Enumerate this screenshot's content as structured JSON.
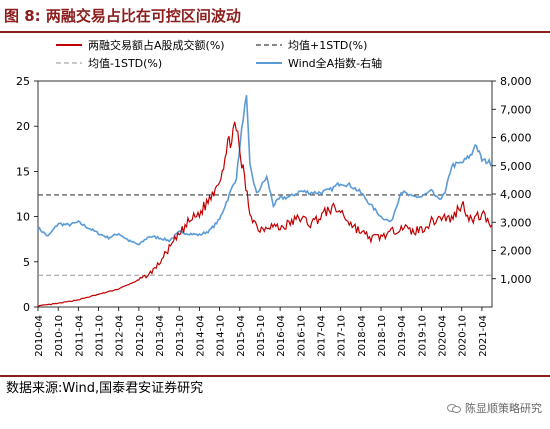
{
  "figure": {
    "title": "图 8:  两融交易占比在可控区间波动",
    "source": "数据来源:Wind,国泰君安证券研究",
    "watermark": "陈显顺策略研究",
    "watermark_icon": "wechat-icon"
  },
  "colors": {
    "red_series": "#c00000",
    "blue_series": "#5b9bd5",
    "upper_band": "#404040",
    "lower_band": "#a6a6a6",
    "title_accent": "#8c1d1d"
  },
  "chart_data": {
    "type": "line",
    "x_ticks": [
      "2010-04",
      "2010-10",
      "2011-04",
      "2011-10",
      "2012-04",
      "2012-10",
      "2013-04",
      "2013-10",
      "2014-04",
      "2014-10",
      "2015-04",
      "2015-10",
      "2016-04",
      "2016-10",
      "2017-04",
      "2017-10",
      "2018-04",
      "2018-10",
      "2019-04",
      "2019-10",
      "2020-04",
      "2020-10",
      "2021-04"
    ],
    "x_range": [
      "2010-04",
      "2021-07"
    ],
    "y_left": {
      "range": [
        0,
        25
      ],
      "ticks": [
        "0",
        "5",
        "10",
        "15",
        "20",
        "25"
      ]
    },
    "y_right": {
      "range": [
        0,
        8000
      ],
      "ticks": [
        "1,000",
        "2,000",
        "3,000",
        "4,000",
        "5,000",
        "6,000",
        "7,000",
        "8,000"
      ]
    },
    "legend": {
      "placement": "top",
      "entries": [
        {
          "label": "两融交易额占A股成交额(%)",
          "style": "solid",
          "color": "#c00000"
        },
        {
          "label": "均值+1STD(%)",
          "style": "dashed",
          "color": "#404040"
        },
        {
          "label": "均值-1STD(%)",
          "style": "dashed",
          "color": "#a6a6a6"
        },
        {
          "label": "Wind全A指数-右轴",
          "style": "solid",
          "color": "#5b9bd5"
        }
      ]
    },
    "grid": false,
    "series": [
      {
        "name": "两融交易额占A股成交额(%)",
        "axis": "left",
        "points": [
          [
            "2010-04",
            0.1
          ],
          [
            "2010-10",
            0.4
          ],
          [
            "2011-04",
            0.8
          ],
          [
            "2011-10",
            1.4
          ],
          [
            "2012-04",
            2.0
          ],
          [
            "2012-10",
            3.0
          ],
          [
            "2013-01",
            3.6
          ],
          [
            "2013-04",
            4.8
          ],
          [
            "2013-07",
            6.5
          ],
          [
            "2013-10",
            8.0
          ],
          [
            "2014-01",
            9.5
          ],
          [
            "2014-04",
            10.3
          ],
          [
            "2014-07",
            12.0
          ],
          [
            "2014-10",
            14.3
          ],
          [
            "2014-12",
            17.0
          ],
          [
            "2015-02",
            19.8
          ],
          [
            "2015-03",
            19.2
          ],
          [
            "2015-05",
            15.0
          ],
          [
            "2015-07",
            10.5
          ],
          [
            "2015-09",
            9.0
          ],
          [
            "2015-10",
            8.6
          ],
          [
            "2016-01",
            9.1
          ],
          [
            "2016-04",
            8.7
          ],
          [
            "2016-07",
            9.3
          ],
          [
            "2016-10",
            9.9
          ],
          [
            "2017-01",
            9.2
          ],
          [
            "2017-04",
            10.0
          ],
          [
            "2017-07",
            10.9
          ],
          [
            "2017-10",
            10.6
          ],
          [
            "2018-01",
            9.2
          ],
          [
            "2018-04",
            8.3
          ],
          [
            "2018-07",
            7.6
          ],
          [
            "2018-10",
            7.8
          ],
          [
            "2019-01",
            8.2
          ],
          [
            "2019-04",
            9.0
          ],
          [
            "2019-07",
            8.3
          ],
          [
            "2019-10",
            8.6
          ],
          [
            "2020-01",
            9.4
          ],
          [
            "2020-04",
            10.0
          ],
          [
            "2020-07",
            9.7
          ],
          [
            "2020-10",
            11.5
          ],
          [
            "2021-01",
            9.5
          ],
          [
            "2021-04",
            10.3
          ],
          [
            "2021-07",
            9.1
          ]
        ]
      },
      {
        "name": "Wind全A指数-右轴",
        "axis": "right",
        "points": [
          [
            "2010-04",
            2800
          ],
          [
            "2010-07",
            2500
          ],
          [
            "2010-10",
            2950
          ],
          [
            "2011-01",
            2900
          ],
          [
            "2011-04",
            3000
          ],
          [
            "2011-07",
            2800
          ],
          [
            "2011-10",
            2600
          ],
          [
            "2012-01",
            2450
          ],
          [
            "2012-04",
            2600
          ],
          [
            "2012-07",
            2350
          ],
          [
            "2012-10",
            2200
          ],
          [
            "2013-01",
            2500
          ],
          [
            "2013-04",
            2450
          ],
          [
            "2013-07",
            2350
          ],
          [
            "2013-10",
            2650
          ],
          [
            "2014-01",
            2600
          ],
          [
            "2014-04",
            2550
          ],
          [
            "2014-07",
            2700
          ],
          [
            "2014-10",
            3100
          ],
          [
            "2014-12",
            3700
          ],
          [
            "2015-03",
            4600
          ],
          [
            "2015-05",
            6700
          ],
          [
            "2015-06",
            7400
          ],
          [
            "2015-07",
            5000
          ],
          [
            "2015-09",
            4000
          ],
          [
            "2015-12",
            4600
          ],
          [
            "2016-02",
            3600
          ],
          [
            "2016-04",
            3850
          ],
          [
            "2016-07",
            3900
          ],
          [
            "2016-10",
            4100
          ],
          [
            "2017-01",
            4050
          ],
          [
            "2017-04",
            4050
          ],
          [
            "2017-07",
            4150
          ],
          [
            "2017-10",
            4400
          ],
          [
            "2018-01",
            4300
          ],
          [
            "2018-04",
            4050
          ],
          [
            "2018-07",
            3600
          ],
          [
            "2018-10",
            3200
          ],
          [
            "2019-01",
            3000
          ],
          [
            "2019-04",
            4100
          ],
          [
            "2019-07",
            3900
          ],
          [
            "2019-10",
            3900
          ],
          [
            "2020-01",
            4100
          ],
          [
            "2020-03",
            3800
          ],
          [
            "2020-05",
            4000
          ],
          [
            "2020-07",
            5000
          ],
          [
            "2020-10",
            5100
          ],
          [
            "2021-01",
            5400
          ],
          [
            "2021-02",
            5800
          ],
          [
            "2021-04",
            5200
          ],
          [
            "2021-07",
            5100
          ]
        ]
      }
    ],
    "bands": [
      {
        "name": "均值+1STD(%)",
        "value": 12.4,
        "axis": "left"
      },
      {
        "name": "均值-1STD(%)",
        "value": 3.5,
        "axis": "left"
      }
    ]
  }
}
